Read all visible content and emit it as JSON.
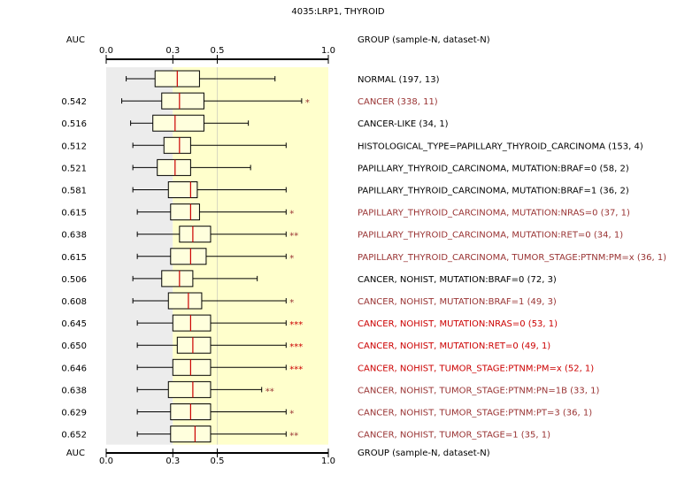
{
  "chart_data": {
    "type": "boxplot",
    "title": "4035:LRP1, THYROID",
    "auc_header": "AUC",
    "group_header": "GROUP (sample-N, dataset-N)",
    "xlim": [
      0.0,
      1.0
    ],
    "x_ticks": [
      "0.0",
      "0.3",
      "0.5",
      "1.0"
    ],
    "shading": {
      "gray_until": 0.3,
      "yellow_from": 0.3,
      "yellow_until": 1.0,
      "reference_line": 0.5
    },
    "colors": {
      "default": "#000000",
      "moderate": "#993333",
      "strong": "#cc0000",
      "median": "#cc0000",
      "box_fill": "#ffffdd",
      "gray_band": "#ececec",
      "yellow_band": "#ffffcc"
    },
    "rows": [
      {
        "label": "NORMAL (197, 13)",
        "auc": "",
        "stars": "",
        "color": "default",
        "whisker_low": 0.09,
        "q1": 0.22,
        "median": 0.32,
        "q3": 0.42,
        "whisker_high": 0.76
      },
      {
        "label": "CANCER (338, 11)",
        "auc": "0.542",
        "stars": "*",
        "color": "moderate",
        "whisker_low": 0.07,
        "q1": 0.25,
        "median": 0.33,
        "q3": 0.44,
        "whisker_high": 0.88
      },
      {
        "label": "CANCER-LIKE (34, 1)",
        "auc": "0.516",
        "stars": "",
        "color": "default",
        "whisker_low": 0.11,
        "q1": 0.21,
        "median": 0.31,
        "q3": 0.44,
        "whisker_high": 0.64
      },
      {
        "label": "HISTOLOGICAL_TYPE=PAPILLARY_THYROID_CARCINOMA (153, 4)",
        "auc": "0.512",
        "stars": "",
        "color": "default",
        "whisker_low": 0.12,
        "q1": 0.26,
        "median": 0.33,
        "q3": 0.38,
        "whisker_high": 0.81
      },
      {
        "label": "PAPILLARY_THYROID_CARCINOMA, MUTATION:BRAF=0 (58, 2)",
        "auc": "0.521",
        "stars": "",
        "color": "default",
        "whisker_low": 0.12,
        "q1": 0.23,
        "median": 0.31,
        "q3": 0.38,
        "whisker_high": 0.65
      },
      {
        "label": "PAPILLARY_THYROID_CARCINOMA, MUTATION:BRAF=1 (36, 2)",
        "auc": "0.581",
        "stars": "",
        "color": "default",
        "whisker_low": 0.12,
        "q1": 0.28,
        "median": 0.38,
        "q3": 0.41,
        "whisker_high": 0.81
      },
      {
        "label": "PAPILLARY_THYROID_CARCINOMA, MUTATION:NRAS=0 (37, 1)",
        "auc": "0.615",
        "stars": "*",
        "color": "moderate",
        "whisker_low": 0.14,
        "q1": 0.29,
        "median": 0.38,
        "q3": 0.42,
        "whisker_high": 0.81
      },
      {
        "label": "PAPILLARY_THYROID_CARCINOMA, MUTATION:RET=0 (34, 1)",
        "auc": "0.638",
        "stars": "**",
        "color": "moderate",
        "whisker_low": 0.14,
        "q1": 0.33,
        "median": 0.39,
        "q3": 0.47,
        "whisker_high": 0.81
      },
      {
        "label": "PAPILLARY_THYROID_CARCINOMA, TUMOR_STAGE:PTNM:PM=x (36, 1)",
        "auc": "0.615",
        "stars": "*",
        "color": "moderate",
        "whisker_low": 0.14,
        "q1": 0.29,
        "median": 0.38,
        "q3": 0.45,
        "whisker_high": 0.81
      },
      {
        "label": "CANCER, NOHIST, MUTATION:BRAF=0 (72, 3)",
        "auc": "0.506",
        "stars": "",
        "color": "default",
        "whisker_low": 0.12,
        "q1": 0.25,
        "median": 0.33,
        "q3": 0.39,
        "whisker_high": 0.68
      },
      {
        "label": "CANCER, NOHIST, MUTATION:BRAF=1 (49, 3)",
        "auc": "0.608",
        "stars": "*",
        "color": "moderate",
        "whisker_low": 0.12,
        "q1": 0.28,
        "median": 0.37,
        "q3": 0.43,
        "whisker_high": 0.81
      },
      {
        "label": "CANCER, NOHIST, MUTATION:NRAS=0 (53, 1)",
        "auc": "0.645",
        "stars": "***",
        "color": "strong",
        "whisker_low": 0.14,
        "q1": 0.3,
        "median": 0.38,
        "q3": 0.47,
        "whisker_high": 0.81
      },
      {
        "label": "CANCER, NOHIST, MUTATION:RET=0 (49, 1)",
        "auc": "0.650",
        "stars": "***",
        "color": "strong",
        "whisker_low": 0.14,
        "q1": 0.32,
        "median": 0.39,
        "q3": 0.47,
        "whisker_high": 0.81
      },
      {
        "label": "CANCER, NOHIST, TUMOR_STAGE:PTNM:PM=x (52, 1)",
        "auc": "0.646",
        "stars": "***",
        "color": "strong",
        "whisker_low": 0.14,
        "q1": 0.3,
        "median": 0.38,
        "q3": 0.47,
        "whisker_high": 0.81
      },
      {
        "label": "CANCER, NOHIST, TUMOR_STAGE:PTNM:PN=1B (33, 1)",
        "auc": "0.638",
        "stars": "**",
        "color": "moderate",
        "whisker_low": 0.14,
        "q1": 0.28,
        "median": 0.39,
        "q3": 0.47,
        "whisker_high": 0.7
      },
      {
        "label": "CANCER, NOHIST, TUMOR_STAGE:PTNM:PT=3 (36, 1)",
        "auc": "0.629",
        "stars": "*",
        "color": "moderate",
        "whisker_low": 0.14,
        "q1": 0.29,
        "median": 0.38,
        "q3": 0.47,
        "whisker_high": 0.81
      },
      {
        "label": "CANCER, NOHIST, TUMOR_STAGE=1 (35, 1)",
        "auc": "0.652",
        "stars": "**",
        "color": "moderate",
        "whisker_low": 0.14,
        "q1": 0.29,
        "median": 0.4,
        "q3": 0.47,
        "whisker_high": 0.81
      }
    ]
  }
}
